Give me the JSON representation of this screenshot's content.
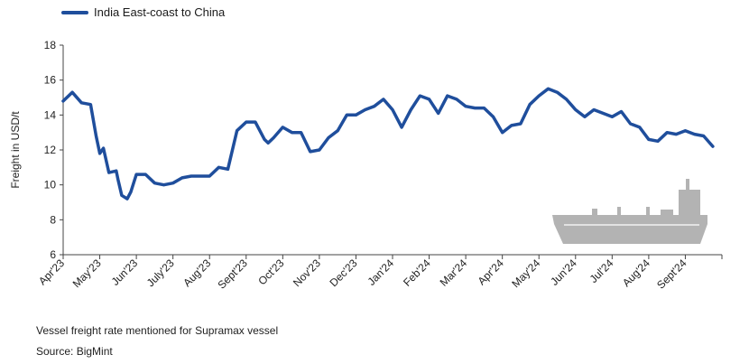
{
  "chart_data": {
    "type": "line",
    "title": "",
    "ylabel": "Freight in USD/t",
    "xlabel": "",
    "ylim": [
      6,
      18
    ],
    "yticks": [
      6,
      8,
      10,
      12,
      14,
      16,
      18
    ],
    "grid": false,
    "legend_position": "top-left",
    "series": [
      {
        "name": "India East-coast to China",
        "color": "#1f4e9c",
        "x": [
          0,
          0.25,
          0.5,
          0.75,
          0.9,
          1,
          1.1,
          1.25,
          1.45,
          1.5,
          1.6,
          1.75,
          1.85,
          2,
          2.25,
          2.5,
          2.75,
          3,
          3.25,
          3.5,
          3.75,
          4,
          4.25,
          4.5,
          4.75,
          5,
          5.25,
          5.5,
          5.6,
          5.75,
          6,
          6.25,
          6.5,
          6.75,
          7,
          7.25,
          7.5,
          7.75,
          8,
          8.25,
          8.5,
          8.75,
          9,
          9.25,
          9.5,
          9.75,
          10,
          10.25,
          10.5,
          10.75,
          11,
          11.25,
          11.5,
          11.75,
          12,
          12.25,
          12.5,
          12.75,
          13,
          13.25,
          13.5,
          13.75,
          14,
          14.25,
          14.5,
          14.75,
          15,
          15.25,
          15.5,
          15.75,
          16,
          16.25,
          16.5,
          16.75,
          17,
          17.25,
          17.5,
          17.75,
          18
        ],
        "y": [
          14.8,
          15.3,
          14.7,
          14.6,
          12.8,
          11.8,
          12.1,
          10.7,
          10.8,
          10.3,
          9.4,
          9.2,
          9.6,
          10.6,
          10.6,
          10.1,
          10,
          10.1,
          10.4,
          10.5,
          10.5,
          10.5,
          11,
          10.9,
          13.1,
          13.6,
          13.6,
          12.6,
          12.4,
          12.7,
          13.3,
          13,
          13,
          11.9,
          12,
          12.7,
          13.1,
          14,
          14,
          14.3,
          14.5,
          14.9,
          14.3,
          13.3,
          14.3,
          15.1,
          14.9,
          14.1,
          15.1,
          14.9,
          14.5,
          14.4,
          14.4,
          13.9,
          13,
          13.4,
          13.5,
          14.6,
          15.1,
          15.5,
          15.3,
          14.9,
          14.3,
          13.9,
          14.3,
          14.1,
          13.9,
          14.2,
          13.5,
          13.3,
          12.6,
          12.5,
          13,
          12.9,
          13.1,
          12.9,
          12.8,
          12.2,
          null
        ]
      }
    ],
    "categories": [
      "Apr'23",
      "May'23",
      "Jun'23",
      "July'23",
      "Aug'23",
      "Sept'23",
      "Oct'23",
      "Nov'23",
      "Dec'23",
      "Jan'24",
      "Feb'24",
      "Mar'24",
      "Apr'24",
      "May'24",
      "Jun'24",
      "Jul'24",
      "Aug'24",
      "Sept'24"
    ]
  },
  "notes": {
    "caption": "Vessel freight rate mentioned for Supramax vessel",
    "source": "Source:  BigMint"
  },
  "illustration": {
    "icon": "ship-icon",
    "color": "#b3b3b3"
  }
}
